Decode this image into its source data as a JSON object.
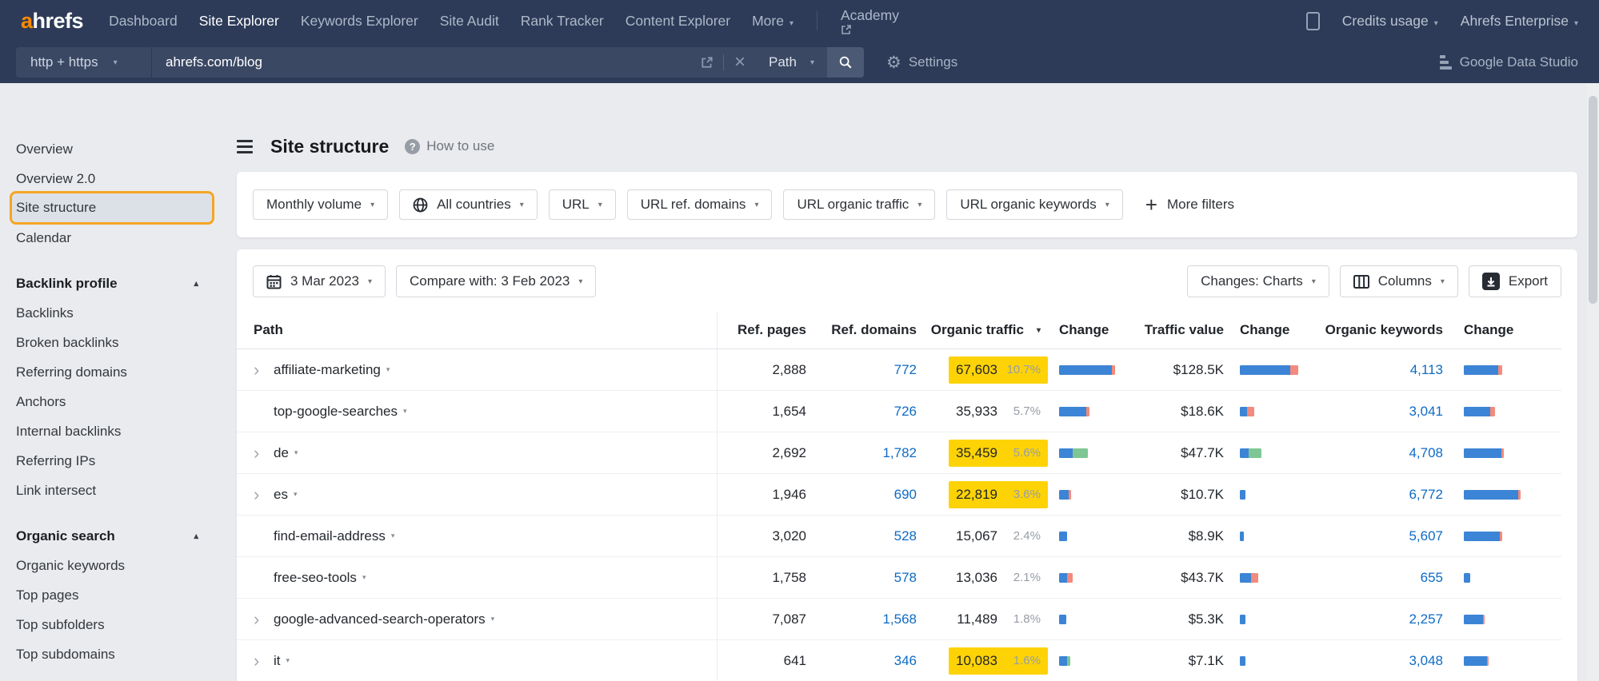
{
  "header": {
    "logo_a": "a",
    "logo_rest": "hrefs",
    "nav": [
      "Dashboard",
      "Site Explorer",
      "Keywords Explorer",
      "Site Audit",
      "Rank Tracker",
      "Content Explorer"
    ],
    "active_nav": "Site Explorer",
    "more_label": "More",
    "academy_label": "Academy",
    "credits_label": "Credits usage",
    "enterprise_label": "Ahrefs Enterprise",
    "search": {
      "protocol": "http + https",
      "url": "ahrefs.com/blog",
      "mode": "Path",
      "settings_label": "Settings",
      "gds_label": "Google Data Studio"
    }
  },
  "sidebar": {
    "groups": [
      {
        "header": null,
        "items": [
          "Overview",
          "Overview 2.0",
          "Site structure",
          "Calendar"
        ]
      },
      {
        "header": "Backlink profile",
        "items": [
          "Backlinks",
          "Broken backlinks",
          "Referring domains",
          "Anchors",
          "Internal backlinks",
          "Referring IPs",
          "Link intersect"
        ]
      },
      {
        "header": "Organic search",
        "items": [
          "Organic keywords",
          "Top pages",
          "Top subfolders",
          "Top subdomains"
        ]
      }
    ],
    "active_item": "Site structure"
  },
  "page": {
    "title": "Site structure",
    "help_label": "How to use"
  },
  "filters": {
    "buttons": [
      {
        "label": "Monthly volume",
        "icon": "none"
      },
      {
        "label": "All countries",
        "icon": "globe"
      },
      {
        "label": "URL",
        "icon": "none"
      },
      {
        "label": "URL ref. domains",
        "icon": "none"
      },
      {
        "label": "URL organic traffic",
        "icon": "none"
      },
      {
        "label": "URL organic keywords",
        "icon": "none"
      }
    ],
    "more_label": "More filters"
  },
  "toolbar": {
    "date": "3 Mar 2023",
    "compare": "Compare with: 3 Feb 2023",
    "changes": "Changes: Charts",
    "columns": "Columns",
    "export": "Export"
  },
  "table": {
    "columns": [
      "Path",
      "Ref. pages",
      "Ref. domains",
      "Organic traffic",
      "Change",
      "Traffic value",
      "Change",
      "Organic keywords",
      "Change"
    ],
    "sorted_column": "Organic traffic",
    "rows": [
      {
        "expand": true,
        "path": "affiliate-marketing",
        "pages": "2,888",
        "domains": "772",
        "traffic": "67,603",
        "pct": "10.7%",
        "hl": true,
        "bar1": [
          [
            "blue",
            66
          ],
          [
            "red",
            4
          ]
        ],
        "value": "$128.5K",
        "bar2": [
          [
            "blue",
            63
          ],
          [
            "red",
            10
          ]
        ],
        "kw": "4,113",
        "bar3": [
          [
            "blue",
            43
          ],
          [
            "red",
            5
          ]
        ]
      },
      {
        "expand": false,
        "path": "top-google-searches",
        "pages": "1,654",
        "domains": "726",
        "traffic": "35,933",
        "pct": "5.7%",
        "hl": false,
        "bar1": [
          [
            "blue",
            34
          ],
          [
            "red",
            4
          ]
        ],
        "value": "$18.6K",
        "bar2": [
          [
            "blue",
            9
          ],
          [
            "red",
            9
          ]
        ],
        "kw": "3,041",
        "bar3": [
          [
            "blue",
            33
          ],
          [
            "red",
            6
          ]
        ]
      },
      {
        "expand": true,
        "path": "de",
        "pages": "2,692",
        "domains": "1,782",
        "traffic": "35,459",
        "pct": "5.6%",
        "hl": true,
        "bar1": [
          [
            "blue",
            17
          ],
          [
            "green",
            19
          ]
        ],
        "value": "$47.7K",
        "bar2": [
          [
            "blue",
            11
          ],
          [
            "green",
            16
          ]
        ],
        "kw": "4,708",
        "bar3": [
          [
            "blue",
            47
          ],
          [
            "red",
            3
          ]
        ]
      },
      {
        "expand": true,
        "path": "es",
        "pages": "1,946",
        "domains": "690",
        "traffic": "22,819",
        "pct": "3.6%",
        "hl": true,
        "bar1": [
          [
            "blue",
            12
          ],
          [
            "red",
            3
          ]
        ],
        "value": "$10.7K",
        "bar2": [
          [
            "blue",
            7
          ]
        ],
        "kw": "6,772",
        "bar3": [
          [
            "blue",
            68
          ],
          [
            "red",
            3
          ]
        ]
      },
      {
        "expand": false,
        "path": "find-email-address",
        "pages": "3,020",
        "domains": "528",
        "traffic": "15,067",
        "pct": "2.4%",
        "hl": false,
        "bar1": [
          [
            "blue",
            10
          ]
        ],
        "value": "$8.9K",
        "bar2": [
          [
            "blue",
            5
          ]
        ],
        "kw": "5,607",
        "bar3": [
          [
            "blue",
            45
          ],
          [
            "red",
            3
          ]
        ]
      },
      {
        "expand": false,
        "path": "free-seo-tools",
        "pages": "1,758",
        "domains": "578",
        "traffic": "13,036",
        "pct": "2.1%",
        "hl": false,
        "bar1": [
          [
            "blue",
            10
          ],
          [
            "red",
            7
          ]
        ],
        "value": "$43.7K",
        "bar2": [
          [
            "blue",
            14
          ],
          [
            "red",
            9
          ]
        ],
        "kw": "655",
        "bar3": [
          [
            "blue",
            8
          ]
        ]
      },
      {
        "expand": true,
        "path": "google-advanced-search-operators",
        "pages": "7,087",
        "domains": "1,568",
        "traffic": "11,489",
        "pct": "1.8%",
        "hl": false,
        "bar1": [
          [
            "blue",
            9
          ]
        ],
        "value": "$5.3K",
        "bar2": [
          [
            "blue",
            7
          ]
        ],
        "kw": "2,257",
        "bar3": [
          [
            "blue",
            24
          ],
          [
            "red",
            2
          ]
        ]
      },
      {
        "expand": true,
        "path": "it",
        "pages": "641",
        "domains": "346",
        "traffic": "10,083",
        "pct": "1.6%",
        "hl": true,
        "bar1": [
          [
            "blue",
            10
          ],
          [
            "green",
            4
          ]
        ],
        "value": "$7.1K",
        "bar2": [
          [
            "blue",
            7
          ]
        ],
        "kw": "3,048",
        "bar3": [
          [
            "blue",
            29
          ],
          [
            "red",
            2
          ]
        ]
      }
    ]
  },
  "colors": {
    "accent_orange": "#f5a623",
    "logo_orange": "#fb8a00",
    "header_navy": "#2d3b58",
    "link_blue": "#0e6bc5",
    "bar_blue": "#3c84d6",
    "bar_red": "#f28a7d",
    "bar_green": "#7ec795",
    "highlight_yellow": "#fdd306"
  }
}
